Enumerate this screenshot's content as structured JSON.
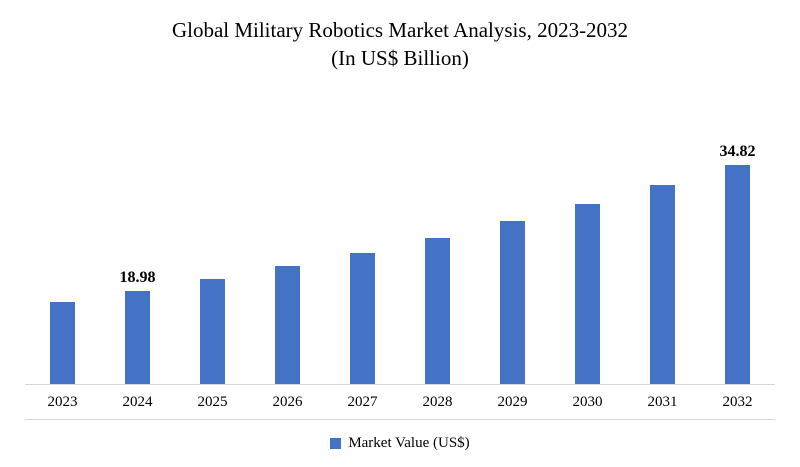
{
  "chart_data": {
    "type": "bar",
    "title": "Global Military Robotics Market Analysis, 2023-2032",
    "subtitle": "(In US$ Billion)",
    "categories": [
      "2023",
      "2024",
      "2025",
      "2026",
      "2027",
      "2028",
      "2029",
      "2030",
      "2031",
      "2032"
    ],
    "series": [
      {
        "name": "Market Value (US$)",
        "values": [
          17.59,
          18.98,
          20.48,
          22.09,
          23.84,
          25.72,
          27.75,
          29.94,
          32.3,
          34.82
        ]
      }
    ],
    "data_labels": {
      "2024": "18.98",
      "2032": "34.82"
    },
    "legend": "Market Value (US$)",
    "legend_position": "bottom",
    "grid": "off",
    "bar_color": "#4472C4",
    "axis_color": "#D6D6D6"
  }
}
